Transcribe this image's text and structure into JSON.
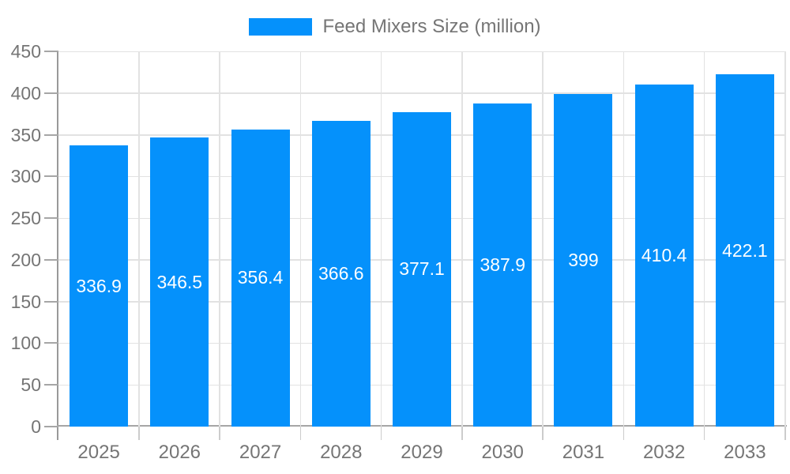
{
  "legend": {
    "label": "Feed Mixers Size (million)"
  },
  "chart_data": {
    "type": "bar",
    "title": "Feed Mixers Size (million)",
    "categories": [
      "2025",
      "2026",
      "2027",
      "2028",
      "2029",
      "2030",
      "2031",
      "2032",
      "2033"
    ],
    "values": [
      336.9,
      346.5,
      356.4,
      366.6,
      377.1,
      387.9,
      399,
      410.4,
      422.1
    ],
    "value_labels": [
      "336.9",
      "346.5",
      "356.4",
      "366.6",
      "377.1",
      "387.9",
      "399",
      "410.4",
      "422.1"
    ],
    "xlabel": "",
    "ylabel": "",
    "ylim": [
      0,
      450
    ],
    "ytick_step": 50,
    "ytick_labels": [
      "0",
      "50",
      "100",
      "150",
      "200",
      "250",
      "300",
      "350",
      "400",
      "450"
    ],
    "grid": true,
    "legend_position": "top",
    "series_color": "#0591fb",
    "bar_label_color": "#ffffff",
    "bar_label_position": "middle"
  }
}
